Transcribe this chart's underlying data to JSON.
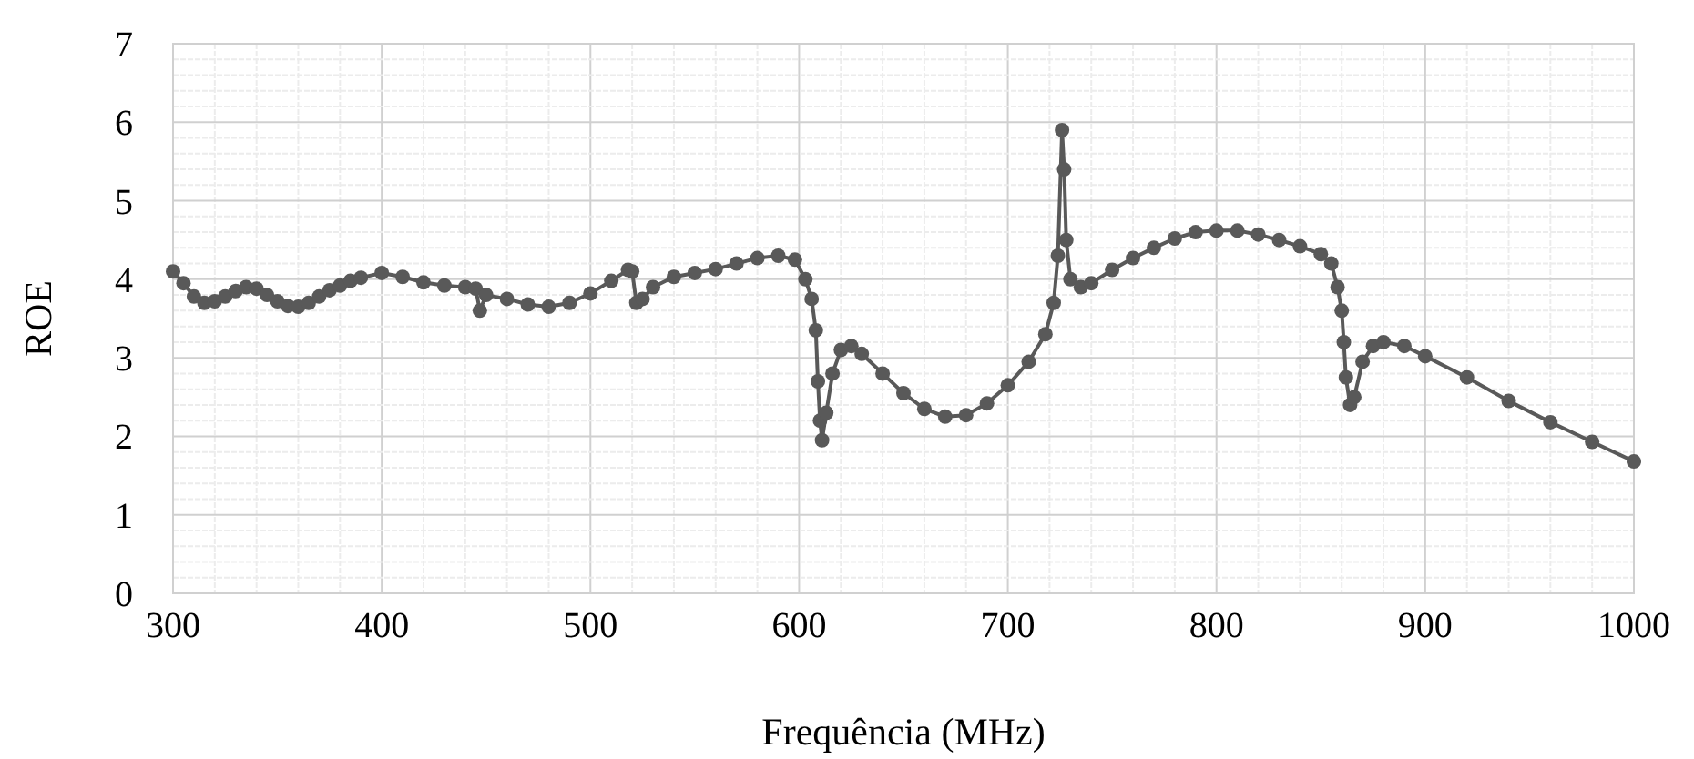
{
  "chart_data": {
    "type": "line",
    "xlabel": "Frequência (MHz)",
    "ylabel": "ROE",
    "marker": "circle",
    "grid": true,
    "xlim": [
      300,
      1000
    ],
    "ylim": [
      0,
      7
    ],
    "xticks": [
      300,
      {
        "value": 320,
        "label": null
      },
      {
        "value": 340,
        "label": null
      },
      {
        "value": 360,
        "label": null
      },
      {
        "value": 380,
        "label": null
      },
      400,
      {
        "value": 420,
        "label": null
      },
      {
        "value": 440,
        "label": null
      },
      {
        "value": 460,
        "label": null
      },
      {
        "value": 480,
        "label": null
      },
      500,
      {
        "value": 520,
        "label": null
      },
      {
        "value": 540,
        "label": null
      },
      {
        "value": 560,
        "label": null
      },
      {
        "value": 580,
        "label": null
      },
      600,
      {
        "value": 620,
        "label": null
      },
      {
        "value": 640,
        "label": null
      },
      {
        "value": 660,
        "label": null
      },
      {
        "value": 680,
        "label": null
      },
      700,
      {
        "value": 720,
        "label": null
      },
      {
        "value": 740,
        "label": null
      },
      {
        "value": 760,
        "label": null
      },
      {
        "value": 780,
        "label": null
      },
      800,
      {
        "value": 820,
        "label": null
      },
      {
        "value": 840,
        "label": null
      },
      {
        "value": 860,
        "label": null
      },
      {
        "value": 880,
        "label": null
      },
      900,
      {
        "value": 920,
        "label": null
      },
      {
        "value": 940,
        "label": null
      },
      {
        "value": 960,
        "label": null
      },
      {
        "value": 980,
        "label": null
      },
      1000
    ],
    "yticks": [
      0,
      {
        "value": 0.2,
        "label": null
      },
      {
        "value": 0.4,
        "label": null
      },
      {
        "value": 0.6,
        "label": null
      },
      {
        "value": 0.8,
        "label": null
      },
      1,
      {
        "value": 1.2,
        "label": null
      },
      {
        "value": 1.4,
        "label": null
      },
      {
        "value": 1.6,
        "label": null
      },
      {
        "value": 1.8,
        "label": null
      },
      2,
      {
        "value": 2.2,
        "label": null
      },
      {
        "value": 2.4,
        "label": null
      },
      {
        "value": 2.6,
        "label": null
      },
      {
        "value": 2.8,
        "label": null
      },
      3,
      {
        "value": 3.2,
        "label": null
      },
      {
        "value": 3.4,
        "label": null
      },
      {
        "value": 3.6,
        "label": null
      },
      {
        "value": 3.8,
        "label": null
      },
      4,
      {
        "value": 4.2,
        "label": null
      },
      {
        "value": 4.4,
        "label": null
      },
      {
        "value": 4.6,
        "label": null
      },
      {
        "value": 4.8,
        "label": null
      },
      5,
      {
        "value": 5.2,
        "label": null
      },
      {
        "value": 5.4,
        "label": null
      },
      {
        "value": 5.6,
        "label": null
      },
      {
        "value": 5.8,
        "label": null
      },
      6,
      {
        "value": 6.2,
        "label": null
      },
      {
        "value": 6.4,
        "label": null
      },
      {
        "value": 6.6,
        "label": null
      },
      {
        "value": 6.8,
        "label": null
      },
      7
    ],
    "x": [
      300,
      305,
      310,
      315,
      320,
      325,
      330,
      335,
      340,
      345,
      350,
      355,
      360,
      365,
      370,
      375,
      380,
      385,
      390,
      400,
      410,
      420,
      430,
      440,
      445,
      447,
      450,
      460,
      470,
      480,
      490,
      500,
      510,
      518,
      520,
      522,
      525,
      530,
      540,
      550,
      560,
      570,
      580,
      590,
      598,
      603,
      606,
      608,
      609,
      610,
      611,
      613,
      616,
      620,
      625,
      630,
      640,
      650,
      660,
      670,
      680,
      690,
      700,
      710,
      718,
      722,
      724,
      726,
      727,
      728,
      730,
      735,
      740,
      750,
      760,
      770,
      780,
      790,
      800,
      810,
      820,
      830,
      840,
      850,
      855,
      858,
      860,
      861,
      862,
      864,
      866,
      870,
      875,
      880,
      890,
      900,
      920,
      940,
      960,
      980,
      1000
    ],
    "series": [
      {
        "color": "#595959",
        "values": [
          4.1,
          3.95,
          3.78,
          3.7,
          3.72,
          3.78,
          3.85,
          3.9,
          3.88,
          3.8,
          3.72,
          3.66,
          3.65,
          3.7,
          3.78,
          3.86,
          3.92,
          3.98,
          4.02,
          4.08,
          4.03,
          3.96,
          3.92,
          3.9,
          3.88,
          3.6,
          3.8,
          3.75,
          3.68,
          3.65,
          3.7,
          3.82,
          3.98,
          4.12,
          4.1,
          3.7,
          3.75,
          3.9,
          4.03,
          4.08,
          4.13,
          4.2,
          4.27,
          4.3,
          4.25,
          4.0,
          3.75,
          3.35,
          2.7,
          2.2,
          1.95,
          2.3,
          2.8,
          3.1,
          3.15,
          3.05,
          2.8,
          2.55,
          2.35,
          2.25,
          2.27,
          2.42,
          2.65,
          2.95,
          3.3,
          3.7,
          4.3,
          5.9,
          5.4,
          4.5,
          4.0,
          3.9,
          3.95,
          4.12,
          4.27,
          4.4,
          4.52,
          4.6,
          4.62,
          4.62,
          4.57,
          4.5,
          4.42,
          4.32,
          4.2,
          3.9,
          3.6,
          3.2,
          2.75,
          2.4,
          2.5,
          2.95,
          3.15,
          3.2,
          3.15,
          3.02,
          2.75,
          2.45,
          2.18,
          1.93,
          1.68
        ]
      }
    ]
  }
}
